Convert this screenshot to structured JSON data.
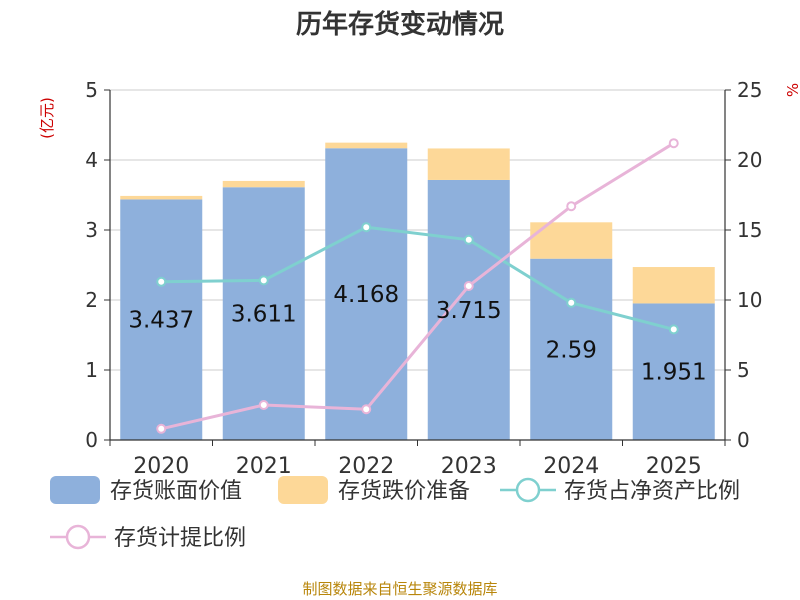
{
  "chart": {
    "title": "历年存货变动情况",
    "left_unit": "(亿元)",
    "right_unit": "%",
    "source": "制图数据来自恒生聚源数据库"
  },
  "chart_data": {
    "type": "bar",
    "categories": [
      "2020",
      "2021",
      "2022",
      "2023",
      "2024",
      "2025"
    ],
    "left_axis": {
      "ylim": [
        0,
        5
      ],
      "ticks": [
        0,
        1,
        2,
        3,
        4,
        5
      ]
    },
    "right_axis": {
      "ylim": [
        0,
        25
      ],
      "ticks": [
        0,
        5,
        10,
        15,
        20,
        25
      ]
    },
    "series": [
      {
        "name": "存货账面价值",
        "type": "bar",
        "stack": "total",
        "axis": "left",
        "color": "#8eb0dc",
        "values": [
          3.437,
          3.611,
          4.168,
          3.715,
          2.59,
          1.951
        ],
        "labels": [
          "3.437",
          "3.611",
          "4.168",
          "3.715",
          "2.59",
          "1.951"
        ]
      },
      {
        "name": "存货跌价准备",
        "type": "bar",
        "stack": "total",
        "axis": "left",
        "color": "#fdd898",
        "values": [
          0.05,
          0.09,
          0.08,
          0.45,
          0.52,
          0.52
        ]
      },
      {
        "name": "存货占净资产比例",
        "type": "line",
        "axis": "right",
        "color": "#7fd0cf",
        "values": [
          11.3,
          11.4,
          15.2,
          14.3,
          9.8,
          7.9
        ]
      },
      {
        "name": "存货计提比例",
        "type": "line",
        "axis": "right",
        "color": "#e8b4d8",
        "values": [
          0.8,
          2.5,
          2.2,
          11.0,
          16.7,
          21.2
        ]
      }
    ],
    "grid": true,
    "legend_position": "bottom"
  }
}
